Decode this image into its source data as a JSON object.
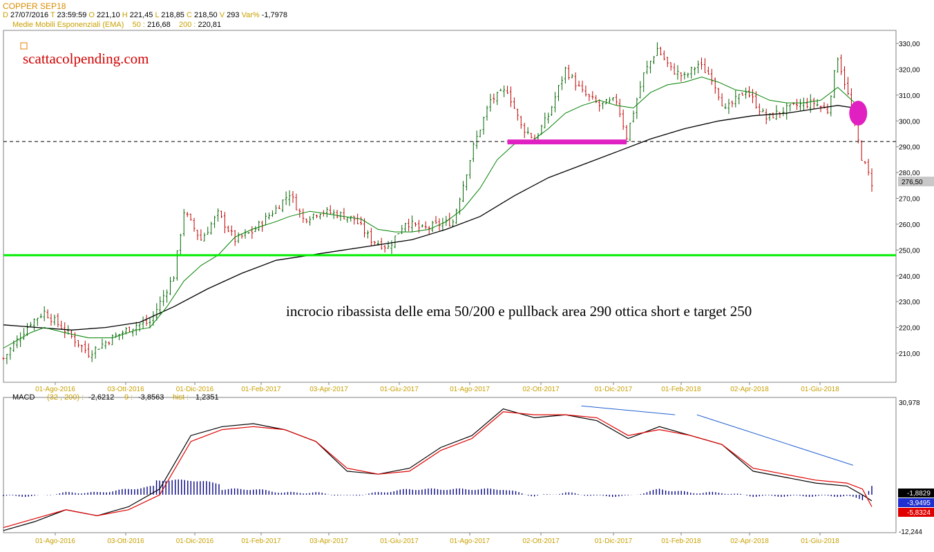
{
  "header": {
    "title": "COPPER SEP18",
    "date_label": "D",
    "date": "27/07/2016",
    "time_label": "T",
    "time": "23:59:59",
    "open_label": "O",
    "open": "221,10",
    "high_label": "H",
    "high": "221,45",
    "low_label": "L",
    "low": "218,85",
    "close_label": "C",
    "close": "218,50",
    "volume_label": "V",
    "volume": "293",
    "var_label": "Var%",
    "var": "-1,7978",
    "ema_label": "Medie Mobili Esponenziali (EMA)",
    "ema50_label": "50 :",
    "ema50": "216,68",
    "ema200_label": "200 :",
    "ema200": "220,81"
  },
  "watermark": "scattacolpending.com",
  "annotation": "incrocio ribassista delle ema 50/200 e pullback area 290  ottica short e target 250",
  "colors": {
    "up": "#006400",
    "down": "#c00000",
    "ema50": "#008000",
    "ema200": "#000000",
    "support": "#00ee00",
    "highlight": "#e020c0",
    "macd": "#000000",
    "signal": "#e00000",
    "hist": "#000080",
    "trend": "#2060d0"
  },
  "chart_data": [
    {
      "type": "candlestick",
      "ylim": [
        200,
        335
      ],
      "y_ticks": [
        "330,00",
        "320,00",
        "310,00",
        "300,00",
        "290,00",
        "280,00",
        "270,00",
        "260,00",
        "250,00",
        "240,00",
        "230,00",
        "220,00",
        "210,00"
      ],
      "x_ticks": [
        "01-Ago-2016",
        "03-Ott-2016",
        "01-Dic-2016",
        "01-Feb-2017",
        "03-Apr-2017",
        "01-Giu-2017",
        "01-Ago-2017",
        "02-Ott-2017",
        "01-Dic-2017",
        "01-Feb-2018",
        "02-Apr-2018",
        "01-Giu-2018"
      ],
      "last_price": "276,50",
      "levels": {
        "resistance_dashed": 292,
        "support": 248,
        "pullback_zone": 292
      },
      "close_path": [
        [
          0,
          208
        ],
        [
          8,
          222
        ],
        [
          12,
          226
        ],
        [
          18,
          219
        ],
        [
          25,
          210
        ],
        [
          32,
          216
        ],
        [
          39,
          221
        ],
        [
          43,
          222
        ],
        [
          50,
          240
        ],
        [
          53,
          265
        ],
        [
          58,
          254
        ],
        [
          63,
          264
        ],
        [
          68,
          254
        ],
        [
          73,
          257
        ],
        [
          80,
          266
        ],
        [
          84,
          272
        ],
        [
          88,
          262
        ],
        [
          93,
          265
        ],
        [
          98,
          264
        ],
        [
          103,
          262
        ],
        [
          108,
          254
        ],
        [
          113,
          251
        ],
        [
          118,
          261
        ],
        [
          123,
          258
        ],
        [
          128,
          260
        ],
        [
          132,
          261
        ],
        [
          138,
          290
        ],
        [
          143,
          308
        ],
        [
          148,
          312
        ],
        [
          152,
          298
        ],
        [
          156,
          293
        ],
        [
          160,
          302
        ],
        [
          165,
          320
        ],
        [
          170,
          311
        ],
        [
          175,
          306
        ],
        [
          180,
          308
        ],
        [
          183,
          294
        ],
        [
          188,
          318
        ],
        [
          192,
          328
        ],
        [
          196,
          320
        ],
        [
          200,
          317
        ],
        [
          204,
          322
        ],
        [
          208,
          317
        ],
        [
          212,
          304
        ],
        [
          218,
          312
        ],
        [
          224,
          301
        ],
        [
          229,
          304
        ],
        [
          233,
          306
        ],
        [
          238,
          307
        ],
        [
          242,
          304
        ],
        [
          245,
          325
        ],
        [
          248,
          310
        ],
        [
          252,
          286
        ],
        [
          255,
          276
        ]
      ],
      "ema50_path": [
        [
          0,
          212
        ],
        [
          8,
          218
        ],
        [
          12,
          220
        ],
        [
          18,
          218
        ],
        [
          25,
          216
        ],
        [
          32,
          216
        ],
        [
          39,
          219
        ],
        [
          43,
          220
        ],
        [
          48,
          228
        ],
        [
          53,
          238
        ],
        [
          58,
          244
        ],
        [
          63,
          248
        ],
        [
          68,
          255
        ],
        [
          73,
          258
        ],
        [
          80,
          261
        ],
        [
          84,
          263
        ],
        [
          90,
          265
        ],
        [
          95,
          264
        ],
        [
          100,
          263
        ],
        [
          105,
          262
        ],
        [
          110,
          258
        ],
        [
          115,
          257
        ],
        [
          120,
          257
        ],
        [
          125,
          258
        ],
        [
          130,
          261
        ],
        [
          135,
          266
        ],
        [
          140,
          274
        ],
        [
          145,
          285
        ],
        [
          150,
          291
        ],
        [
          155,
          292
        ],
        [
          160,
          297
        ],
        [
          165,
          303
        ],
        [
          170,
          306
        ],
        [
          175,
          308
        ],
        [
          180,
          306
        ],
        [
          185,
          305
        ],
        [
          190,
          311
        ],
        [
          195,
          314
        ],
        [
          200,
          315
        ],
        [
          205,
          317
        ],
        [
          210,
          315
        ],
        [
          215,
          312
        ],
        [
          220,
          311
        ],
        [
          225,
          308
        ],
        [
          230,
          307
        ],
        [
          235,
          307
        ],
        [
          240,
          308
        ],
        [
          245,
          313
        ],
        [
          250,
          307
        ],
        [
          253,
          303
        ]
      ],
      "ema200_path": [
        [
          0,
          221
        ],
        [
          10,
          220
        ],
        [
          20,
          219
        ],
        [
          30,
          220
        ],
        [
          40,
          222
        ],
        [
          50,
          228
        ],
        [
          60,
          235
        ],
        [
          70,
          241
        ],
        [
          80,
          246
        ],
        [
          90,
          248
        ],
        [
          100,
          250
        ],
        [
          110,
          252
        ],
        [
          120,
          254
        ],
        [
          130,
          258
        ],
        [
          140,
          263
        ],
        [
          150,
          271
        ],
        [
          160,
          278
        ],
        [
          170,
          283
        ],
        [
          180,
          288
        ],
        [
          190,
          293
        ],
        [
          200,
          297
        ],
        [
          210,
          300
        ],
        [
          220,
          302
        ],
        [
          230,
          303
        ],
        [
          240,
          305
        ],
        [
          245,
          306
        ],
        [
          250,
          305
        ],
        [
          253,
          303
        ]
      ],
      "circle_marker": {
        "x": 251,
        "y": 303
      }
    },
    {
      "type": "line",
      "name": "MACD",
      "params": "(32 , 200) :",
      "macd_value": "-2,6212",
      "signal_label": "9 :",
      "signal_value": "-3,8563",
      "hist_label": "hist :",
      "hist_value": "1,2351",
      "y_top_label": "30,978",
      "y_bottom_label": "-12,244",
      "ylim": [
        -12.244,
        30.978
      ],
      "last_values": [
        "-1,8829",
        "-3,9495",
        "-5,8324"
      ],
      "x_ticks": [
        "01-Ago-2016",
        "03-Ott-2016",
        "01-Dic-2016",
        "01-Feb-2017",
        "03-Apr-2017",
        "01-Giu-2017",
        "01-Ago-2017",
        "02-Ott-2017",
        "01-Dic-2017",
        "01-Feb-2018",
        "02-Apr-2018",
        "01-Giu-2018"
      ],
      "macd_path": [
        [
          0,
          -12
        ],
        [
          10,
          -9
        ],
        [
          20,
          -5
        ],
        [
          30,
          -7
        ],
        [
          40,
          -4
        ],
        [
          50,
          2
        ],
        [
          60,
          20
        ],
        [
          70,
          23
        ],
        [
          80,
          24
        ],
        [
          90,
          22
        ],
        [
          100,
          18
        ],
        [
          110,
          8
        ],
        [
          120,
          7
        ],
        [
          130,
          9
        ],
        [
          140,
          16
        ],
        [
          150,
          20
        ],
        [
          160,
          29
        ],
        [
          170,
          26
        ],
        [
          180,
          27
        ],
        [
          190,
          25
        ],
        [
          200,
          19
        ],
        [
          210,
          23
        ],
        [
          220,
          20
        ],
        [
          230,
          17
        ],
        [
          240,
          8
        ],
        [
          250,
          6
        ],
        [
          260,
          4
        ],
        [
          270,
          3
        ],
        [
          275,
          0
        ],
        [
          278,
          -2
        ]
      ],
      "signal_path": [
        [
          0,
          -11
        ],
        [
          10,
          -8
        ],
        [
          20,
          -5
        ],
        [
          30,
          -7
        ],
        [
          40,
          -5
        ],
        [
          50,
          0
        ],
        [
          60,
          18
        ],
        [
          70,
          22
        ],
        [
          80,
          23
        ],
        [
          90,
          22
        ],
        [
          100,
          18
        ],
        [
          110,
          9
        ],
        [
          120,
          7
        ],
        [
          130,
          8
        ],
        [
          140,
          15
        ],
        [
          150,
          19
        ],
        [
          160,
          28
        ],
        [
          170,
          27
        ],
        [
          180,
          27
        ],
        [
          190,
          26
        ],
        [
          200,
          20
        ],
        [
          210,
          22
        ],
        [
          220,
          20
        ],
        [
          230,
          17
        ],
        [
          240,
          9
        ],
        [
          250,
          7
        ],
        [
          260,
          5
        ],
        [
          270,
          4
        ],
        [
          275,
          2
        ],
        [
          278,
          -4
        ]
      ],
      "trendlines": [
        [
          [
            185,
            30
          ],
          [
            215,
            27
          ]
        ],
        [
          [
            222,
            27
          ],
          [
            272,
            10
          ]
        ]
      ]
    }
  ]
}
